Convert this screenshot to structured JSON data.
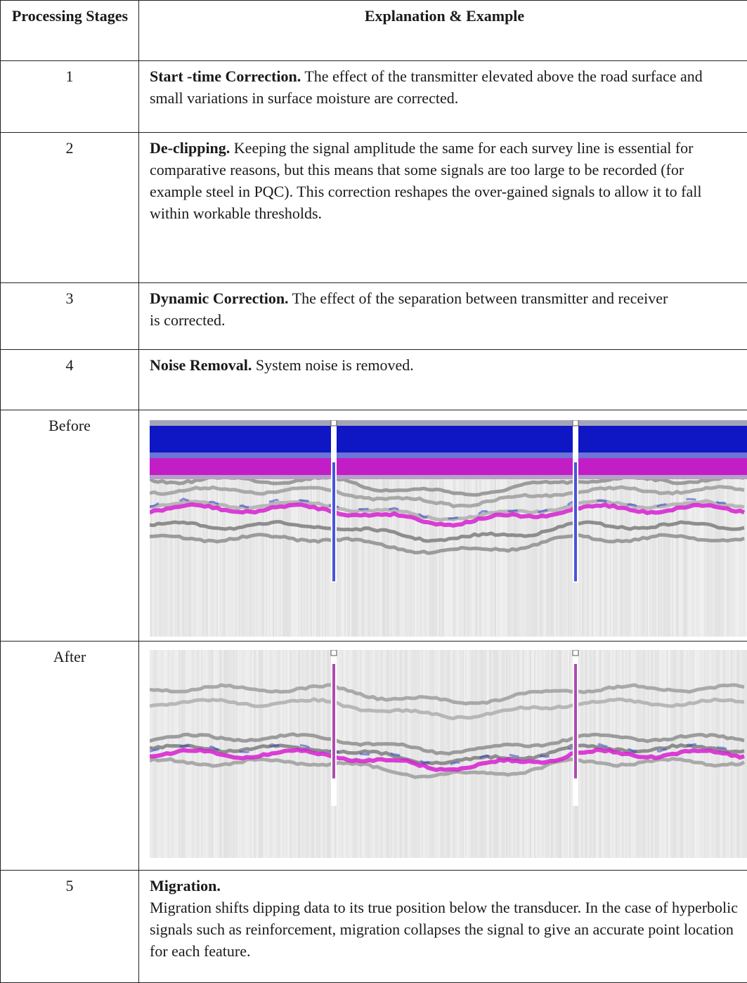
{
  "table": {
    "header": [
      "Processing Stages",
      "Explanation & Example"
    ],
    "rows": [
      {
        "stage": "1",
        "title": "Start -time Correction.",
        "text": "The effect of the transmitter elevated above the road surface and small variations in surface moisture are corrected."
      },
      {
        "stage": "2",
        "title": "De-clipping.",
        "text": "Keeping the signal amplitude the same for each survey line is essential for comparative reasons, but this means that some signals are too large to be recorded (for example steel in PQC). This correction reshapes the over-gained signals to allow it to fall within workable thresholds."
      },
      {
        "stage": "3",
        "title": "Dynamic Correction.",
        "text": "The effect of the separation between transmitter and receiver is corrected."
      },
      {
        "stage": "4",
        "title": "Noise Removal.",
        "text": "System noise is removed."
      },
      {
        "stage": "Before"
      },
      {
        "stage": "After"
      },
      {
        "stage": "5",
        "title": "Migration.",
        "text": "Migration shifts dipping data to its true position below the transducer. In the case of hyperbolic signals such as reinforcement, migration collapses the signal to give an accurate point location for each feature."
      }
    ]
  }
}
